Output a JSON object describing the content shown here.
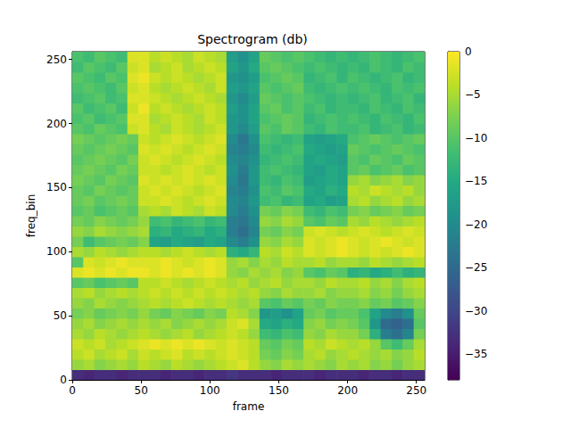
{
  "chart_data": {
    "type": "heatmap",
    "title": "Spectrogram (db)",
    "x_label": "frame",
    "y_label": "freq_bin",
    "color": "viridis",
    "xlim": [
      0,
      256
    ],
    "ylim": [
      0,
      256
    ],
    "xticks": [
      0,
      50,
      100,
      150,
      200,
      250
    ],
    "yticks": [
      0,
      50,
      100,
      150,
      200,
      250
    ],
    "x_edges": [
      0,
      8,
      16,
      24,
      32,
      40,
      48,
      56,
      64,
      72,
      80,
      88,
      96,
      104,
      112,
      120,
      128,
      136,
      144,
      152,
      160,
      168,
      176,
      184,
      192,
      200,
      208,
      216,
      224,
      232,
      240,
      248,
      256
    ],
    "y_edges": [
      0,
      8,
      16,
      24,
      32,
      40,
      48,
      56,
      64,
      72,
      80,
      88,
      96,
      104,
      112,
      120,
      128,
      136,
      144,
      152,
      160,
      168,
      176,
      184,
      192,
      200,
      208,
      216,
      224,
      232,
      240,
      248,
      256
    ],
    "cells": [
      [
        -33,
        -34,
        -33,
        -33,
        -34,
        -33,
        -33,
        -33,
        -34,
        -33,
        -33,
        -34,
        -33,
        -33,
        -32,
        -33,
        -33,
        -33,
        -34,
        -33,
        -33,
        -33,
        -34,
        -33,
        -33,
        -33,
        -34,
        -33,
        -33,
        -34,
        -33,
        -33
      ],
      [
        -6,
        -5,
        -7,
        -6,
        -5,
        -6,
        -4,
        -5,
        -6,
        -4,
        -5,
        -6,
        -5,
        -4,
        -3,
        -2,
        -4,
        -6,
        -7,
        -5,
        -6,
        -5,
        -6,
        -7,
        -5,
        -6,
        -5,
        -7,
        -6,
        -8,
        -6,
        -5
      ],
      [
        -4,
        -3,
        -5,
        -4,
        -3,
        -5,
        -3,
        -4,
        -3,
        -2,
        -4,
        -3,
        -4,
        -3,
        -2,
        -3,
        -4,
        -8,
        -9,
        -7,
        -8,
        -5,
        -4,
        -6,
        -5,
        -4,
        -5,
        -6,
        -5,
        -7,
        -6,
        -4
      ],
      [
        -3,
        -4,
        -3,
        -5,
        -4,
        -3,
        -2,
        -1,
        -2,
        -1,
        -2,
        -1,
        -2,
        -3,
        -2,
        -3,
        -4,
        -9,
        -10,
        -8,
        -9,
        -4,
        -5,
        -3,
        -4,
        -5,
        -4,
        -6,
        -10,
        -12,
        -9,
        -5
      ],
      [
        -5,
        -6,
        -4,
        -5,
        -6,
        -5,
        -4,
        -5,
        -6,
        -5,
        -4,
        -6,
        -5,
        -4,
        -3,
        -4,
        -6,
        -12,
        -13,
        -11,
        -12,
        -6,
        -7,
        -5,
        -6,
        -6,
        -8,
        -14,
        -22,
        -24,
        -21,
        -8
      ],
      [
        -6,
        -5,
        -7,
        -6,
        -5,
        -6,
        -5,
        -6,
        -5,
        -7,
        -6,
        -5,
        -6,
        -5,
        -3,
        -2,
        -5,
        -15,
        -16,
        -14,
        -15,
        -7,
        -6,
        -8,
        -7,
        -8,
        -10,
        -18,
        -25,
        -26,
        -24,
        -10
      ],
      [
        -8,
        -7,
        -9,
        -8,
        -7,
        -8,
        -6,
        -8,
        -9,
        -7,
        -8,
        -9,
        -7,
        -8,
        -4,
        -5,
        -7,
        -18,
        -17,
        -19,
        -16,
        -9,
        -8,
        -10,
        -9,
        -9,
        -11,
        -16,
        -20,
        -22,
        -19,
        -9
      ],
      [
        -6,
        -7,
        -5,
        -6,
        -7,
        -6,
        -5,
        -4,
        -5,
        -4,
        -3,
        -4,
        -5,
        -4,
        -5,
        -6,
        -5,
        -10,
        -11,
        -9,
        -10,
        -8,
        -9,
        -7,
        -8,
        -8,
        -7,
        -9,
        -8,
        -10,
        -9,
        -7
      ],
      [
        -5,
        -4,
        -6,
        -5,
        -4,
        -5,
        -4,
        -3,
        -4,
        -3,
        -4,
        -3,
        -4,
        -3,
        -4,
        -5,
        -4,
        -6,
        -7,
        -5,
        -6,
        -6,
        -5,
        -7,
        -6,
        -6,
        -5,
        -7,
        -6,
        -8,
        -6,
        -5
      ],
      [
        -10,
        -9,
        -11,
        -10,
        -9,
        -10,
        -4,
        -4,
        -3,
        -4,
        -5,
        -4,
        -3,
        -4,
        -5,
        -4,
        -6,
        -5,
        -4,
        -6,
        -5,
        -5,
        -6,
        -4,
        -5,
        -5,
        -4,
        -6,
        -5,
        -7,
        -5,
        -4
      ],
      [
        -2,
        -1,
        -2,
        -1,
        -2,
        -1,
        -1,
        -2,
        -1,
        -2,
        -1,
        -2,
        -1,
        -2,
        -6,
        -7,
        -5,
        -6,
        -5,
        -7,
        -6,
        -10,
        -11,
        -9,
        -10,
        -14,
        -13,
        -15,
        -14,
        -12,
        -14,
        -13
      ],
      [
        -10,
        -2,
        -3,
        -2,
        -1,
        -2,
        -2,
        -2,
        -1,
        -2,
        -3,
        -2,
        -1,
        -2,
        -6,
        -5,
        -7,
        -5,
        -6,
        -4,
        -5,
        -5,
        -4,
        -6,
        -5,
        -5,
        -6,
        -4,
        -5,
        -6,
        -5,
        -4
      ],
      [
        -5,
        -6,
        -4,
        -5,
        -6,
        -5,
        -4,
        -4,
        -5,
        -4,
        -3,
        -4,
        -5,
        -4,
        -14,
        -15,
        -13,
        -4,
        -5,
        -3,
        -4,
        -2,
        -3,
        -2,
        -1,
        -2,
        -3,
        -2,
        -3,
        -2,
        -1,
        -2
      ],
      [
        -8,
        -12,
        -10,
        -9,
        -8,
        -9,
        -7,
        -16,
        -17,
        -15,
        -16,
        -17,
        -15,
        -16,
        -20,
        -22,
        -19,
        -6,
        -7,
        -5,
        -6,
        -2,
        -3,
        -2,
        -1,
        -2,
        -3,
        -2,
        -1,
        -2,
        -3,
        -2
      ],
      [
        -6,
        -7,
        -5,
        -6,
        -7,
        -6,
        -5,
        -14,
        -13,
        -15,
        -14,
        -13,
        -15,
        -14,
        -22,
        -24,
        -21,
        -8,
        -9,
        -7,
        -8,
        -3,
        -2,
        -3,
        -4,
        -3,
        -2,
        -3,
        -4,
        -3,
        -2,
        -3
      ],
      [
        -8,
        -9,
        -7,
        -8,
        -9,
        -8,
        -6,
        -12,
        -11,
        -13,
        -12,
        -11,
        -13,
        -12,
        -22,
        -23,
        -20,
        -6,
        -7,
        -5,
        -6,
        -10,
        -11,
        -9,
        -10,
        -5,
        -6,
        -4,
        -5,
        -6,
        -5,
        -4
      ],
      [
        -10,
        -9,
        -11,
        -10,
        -9,
        -10,
        -5,
        -4,
        -5,
        -3,
        -4,
        -5,
        -3,
        -4,
        -20,
        -22,
        -19,
        -8,
        -9,
        -7,
        -8,
        -12,
        -13,
        -11,
        -12,
        -8,
        -7,
        -9,
        -8,
        -7,
        -9,
        -8
      ],
      [
        -9,
        -8,
        -10,
        -9,
        -8,
        -9,
        -3,
        -3,
        -2,
        -3,
        -4,
        -3,
        -2,
        -3,
        -20,
        -21,
        -18,
        -12,
        -11,
        -13,
        -12,
        -16,
        -15,
        -17,
        -16,
        -5,
        -4,
        -6,
        -5,
        -4,
        -6,
        -5
      ],
      [
        -9,
        -10,
        -8,
        -9,
        -10,
        -9,
        -3,
        -2,
        -3,
        -2,
        -3,
        -4,
        -3,
        -2,
        -21,
        -22,
        -19,
        -11,
        -12,
        -10,
        -11,
        -15,
        -16,
        -14,
        -15,
        -4,
        -5,
        -3,
        -4,
        -5,
        -4,
        -6
      ],
      [
        -8,
        -9,
        -10,
        -8,
        -9,
        -10,
        -2,
        -3,
        -2,
        -3,
        -2,
        -3,
        -2,
        -3,
        -20,
        -23,
        -18,
        -12,
        -13,
        -11,
        -12,
        -17,
        -16,
        -15,
        -16,
        -6,
        -5,
        -7,
        -6,
        -5,
        -7,
        -6
      ],
      [
        -9,
        -8,
        -9,
        -10,
        -8,
        -9,
        -3,
        -3,
        -4,
        -3,
        -2,
        -3,
        -4,
        -3,
        -19,
        -22,
        -18,
        -12,
        -11,
        -12,
        -13,
        -16,
        -17,
        -15,
        -16,
        -10,
        -9,
        -11,
        -10,
        -9,
        -11,
        -10
      ],
      [
        -10,
        -9,
        -8,
        -9,
        -10,
        -8,
        -3,
        -2,
        -3,
        -4,
        -3,
        -2,
        -3,
        -4,
        -20,
        -21,
        -19,
        -13,
        -12,
        -11,
        -12,
        -16,
        -15,
        -16,
        -17,
        -10,
        -11,
        -9,
        -10,
        -11,
        -9,
        -10
      ],
      [
        -9,
        -10,
        -9,
        -8,
        -9,
        -10,
        -2,
        -3,
        -2,
        -3,
        -4,
        -3,
        -2,
        -3,
        -21,
        -22,
        -20,
        -12,
        -13,
        -12,
        -11,
        -15,
        -16,
        -17,
        -16,
        -9,
        -10,
        -11,
        -10,
        -9,
        -10,
        -11
      ],
      [
        -8,
        -9,
        -10,
        -9,
        -8,
        -9,
        -3,
        -4,
        -3,
        -2,
        -3,
        -4,
        -3,
        -2,
        -20,
        -23,
        -19,
        -11,
        -12,
        -13,
        -12,
        -16,
        -17,
        -16,
        -15,
        -11,
        -10,
        -9,
        -10,
        -11,
        -10,
        -9
      ],
      [
        -10,
        -11,
        -9,
        -10,
        -11,
        -3,
        -2,
        -4,
        -5,
        -3,
        -4,
        -5,
        -4,
        -3,
        -18,
        -20,
        -17,
        -10,
        -11,
        -9,
        -10,
        -12,
        -13,
        -11,
        -12,
        -12,
        -11,
        -13,
        -12,
        -11,
        -13,
        -12
      ],
      [
        -11,
        -10,
        -12,
        -11,
        -10,
        -2,
        -2,
        -5,
        -4,
        -3,
        -4,
        -5,
        -3,
        -4,
        -18,
        -19,
        -16,
        -11,
        -10,
        -9,
        -10,
        -13,
        -12,
        -11,
        -12,
        -11,
        -12,
        -13,
        -11,
        -12,
        -13,
        -11
      ],
      [
        -10,
        -12,
        -11,
        -10,
        -12,
        -3,
        -1,
        -4,
        -3,
        -4,
        -5,
        -4,
        -3,
        -4,
        -17,
        -19,
        -16,
        -10,
        -9,
        -11,
        -10,
        -12,
        -11,
        -13,
        -12,
        -12,
        -13,
        -11,
        -12,
        -13,
        -11,
        -12
      ],
      [
        -12,
        -11,
        -10,
        -12,
        -11,
        -2,
        -2,
        -3,
        -4,
        -5,
        -4,
        -3,
        -4,
        -5,
        -18,
        -20,
        -17,
        -9,
        -10,
        -11,
        -10,
        -11,
        -12,
        -13,
        -12,
        -13,
        -12,
        -11,
        -13,
        -12,
        -11,
        -13
      ],
      [
        -11,
        -10,
        -11,
        -12,
        -10,
        -3,
        -2,
        -4,
        -5,
        -4,
        -3,
        -4,
        -5,
        -3,
        -17,
        -18,
        -16,
        -10,
        -11,
        -10,
        -9,
        -12,
        -13,
        -12,
        -11,
        -12,
        -11,
        -12,
        -13,
        -11,
        -12,
        -11
      ],
      [
        -10,
        -11,
        -12,
        -10,
        -11,
        -2,
        -1,
        -3,
        -4,
        -3,
        -4,
        -5,
        -4,
        -3,
        -18,
        -19,
        -17,
        -11,
        -10,
        -9,
        -10,
        -13,
        -12,
        -11,
        -13,
        -11,
        -12,
        -13,
        -12,
        -11,
        -13,
        -12
      ],
      [
        -12,
        -10,
        -11,
        -12,
        -10,
        -3,
        -2,
        -5,
        -4,
        -3,
        -5,
        -4,
        -3,
        -4,
        -16,
        -18,
        -15,
        -10,
        -9,
        -10,
        -11,
        -12,
        -11,
        -12,
        -13,
        -12,
        -13,
        -11,
        -12,
        -13,
        -11,
        -12
      ],
      [
        -11,
        -12,
        -10,
        -11,
        -12,
        -2,
        -2,
        -4,
        -3,
        -4,
        -5,
        -3,
        -4,
        -5,
        -17,
        -19,
        -16,
        -9,
        -10,
        -11,
        -10,
        -11,
        -12,
        -13,
        -12,
        -13,
        -12,
        -11,
        -12,
        -13,
        -12,
        -11
      ]
    ],
    "colorbar": {
      "range": [
        -38,
        0
      ],
      "ticks": [
        0,
        {
          "value": -5,
          "label": "−5"
        },
        {
          "value": -10,
          "label": "−10"
        },
        {
          "value": -15,
          "label": "−15"
        },
        {
          "value": -20,
          "label": "−20"
        },
        {
          "value": -25,
          "label": "−25"
        },
        {
          "value": -30,
          "label": "−30"
        },
        {
          "value": -35,
          "label": "−35"
        }
      ]
    }
  }
}
